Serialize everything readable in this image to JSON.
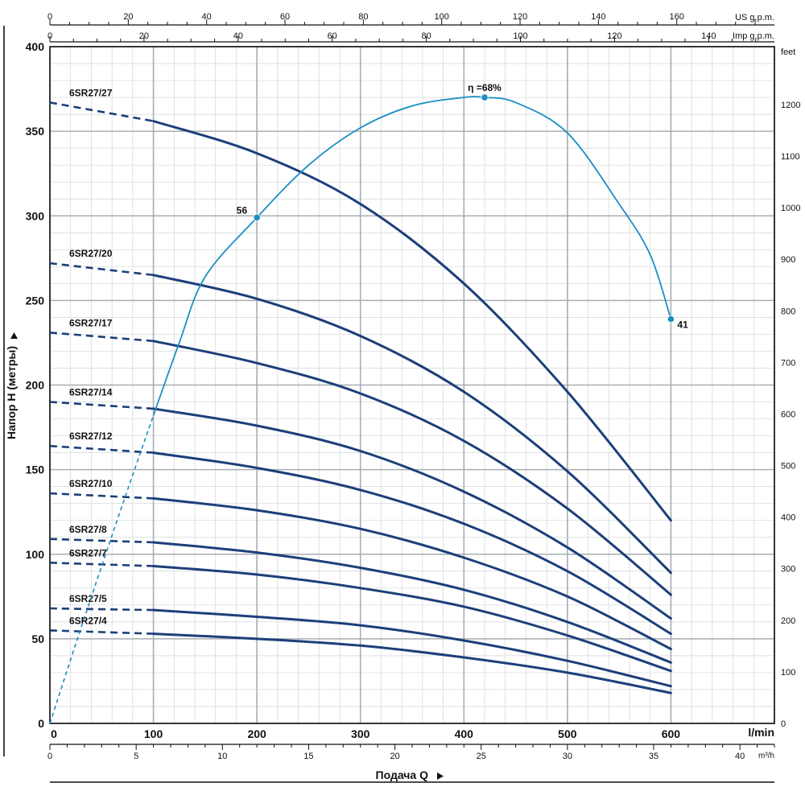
{
  "chart_data": {
    "type": "line",
    "xlabel": "Подача Q",
    "ylabel": "Напор H (метры)",
    "x_unit_lmin": "l/min",
    "x_unit_m3h": "m³/h",
    "x_unit_usgpm": "US g.p.m.",
    "x_unit_impgpm": "Imp g.p.m.",
    "y_unit_right": "feet",
    "xlim_lmin": [
      0,
      700
    ],
    "ylim_m": [
      0,
      400
    ],
    "x_ticks_lmin": [
      0,
      100,
      200,
      300,
      400,
      500,
      600
    ],
    "y_ticks_m": [
      0,
      50,
      100,
      150,
      200,
      250,
      300,
      350,
      400
    ],
    "x_ticks_m3h": [
      0,
      5,
      10,
      15,
      20,
      25,
      30,
      35,
      40
    ],
    "x_ticks_usgpm": [
      0,
      20,
      40,
      60,
      80,
      100,
      120,
      140,
      160
    ],
    "x_ticks_impgpm": [
      0,
      20,
      40,
      60,
      80,
      100,
      120,
      140
    ],
    "y_ticks_feet": [
      0,
      100,
      200,
      300,
      400,
      500,
      600,
      700,
      800,
      900,
      1000,
      1100,
      1200
    ],
    "operating_range_lmin": [
      100,
      600
    ],
    "colors": {
      "curve": "#1c3f7a",
      "efficiency": "#1a8fc4",
      "grid": "#b4b8bc"
    },
    "series": [
      {
        "name": "6SR27/27",
        "x": [
          0,
          100,
          200,
          300,
          400,
          500,
          600
        ],
        "y": [
          367,
          356,
          337,
          307,
          260,
          196,
          120
        ]
      },
      {
        "name": "6SR27/20",
        "x": [
          0,
          100,
          200,
          300,
          400,
          500,
          600
        ],
        "y": [
          272,
          265,
          251,
          229,
          196,
          149,
          89
        ]
      },
      {
        "name": "6SR27/17",
        "x": [
          0,
          100,
          200,
          300,
          400,
          500,
          600
        ],
        "y": [
          231,
          226,
          213,
          195,
          167,
          127,
          76
        ]
      },
      {
        "name": "6SR27/14",
        "x": [
          0,
          100,
          200,
          300,
          400,
          500,
          600
        ],
        "y": [
          190,
          186,
          176,
          161,
          137,
          104,
          62
        ]
      },
      {
        "name": "6SR27/12",
        "x": [
          0,
          100,
          200,
          300,
          400,
          500,
          600
        ],
        "y": [
          164,
          160,
          151,
          138,
          118,
          90,
          53
        ]
      },
      {
        "name": "6SR27/10",
        "x": [
          0,
          100,
          200,
          300,
          400,
          500,
          600
        ],
        "y": [
          136,
          133,
          126,
          115,
          98,
          75,
          44
        ]
      },
      {
        "name": "6SR27/8",
        "x": [
          0,
          100,
          200,
          300,
          400,
          500,
          600
        ],
        "y": [
          109,
          107,
          101,
          92,
          79,
          60,
          36
        ]
      },
      {
        "name": "6SR27/7",
        "x": [
          0,
          100,
          200,
          300,
          400,
          500,
          600
        ],
        "y": [
          95,
          93,
          88,
          80,
          69,
          52,
          31
        ]
      },
      {
        "name": "6SR27/5",
        "x": [
          0,
          100,
          200,
          300,
          400,
          500,
          600
        ],
        "y": [
          68,
          67,
          63,
          58,
          49,
          37,
          22
        ]
      },
      {
        "name": "6SR27/4",
        "x": [
          0,
          100,
          200,
          300,
          400,
          500,
          600
        ],
        "y": [
          55,
          53,
          50,
          46,
          39,
          30,
          18
        ]
      }
    ],
    "efficiency": {
      "curve_x": [
        0,
        25,
        50,
        75,
        100,
        125,
        150,
        200,
        250,
        300,
        350,
        400,
        420,
        450,
        500,
        550,
        580,
        600
      ],
      "curve_y": [
        0,
        47,
        93,
        138,
        182,
        225,
        264,
        299,
        330,
        352,
        365,
        370,
        370,
        367,
        349,
        307,
        277,
        239
      ],
      "points": [
        {
          "x": 200,
          "y": 299,
          "label": "56"
        },
        {
          "x": 420,
          "y": 370,
          "label": "η =68%"
        },
        {
          "x": 600,
          "y": 239,
          "label": "41"
        }
      ]
    }
  }
}
